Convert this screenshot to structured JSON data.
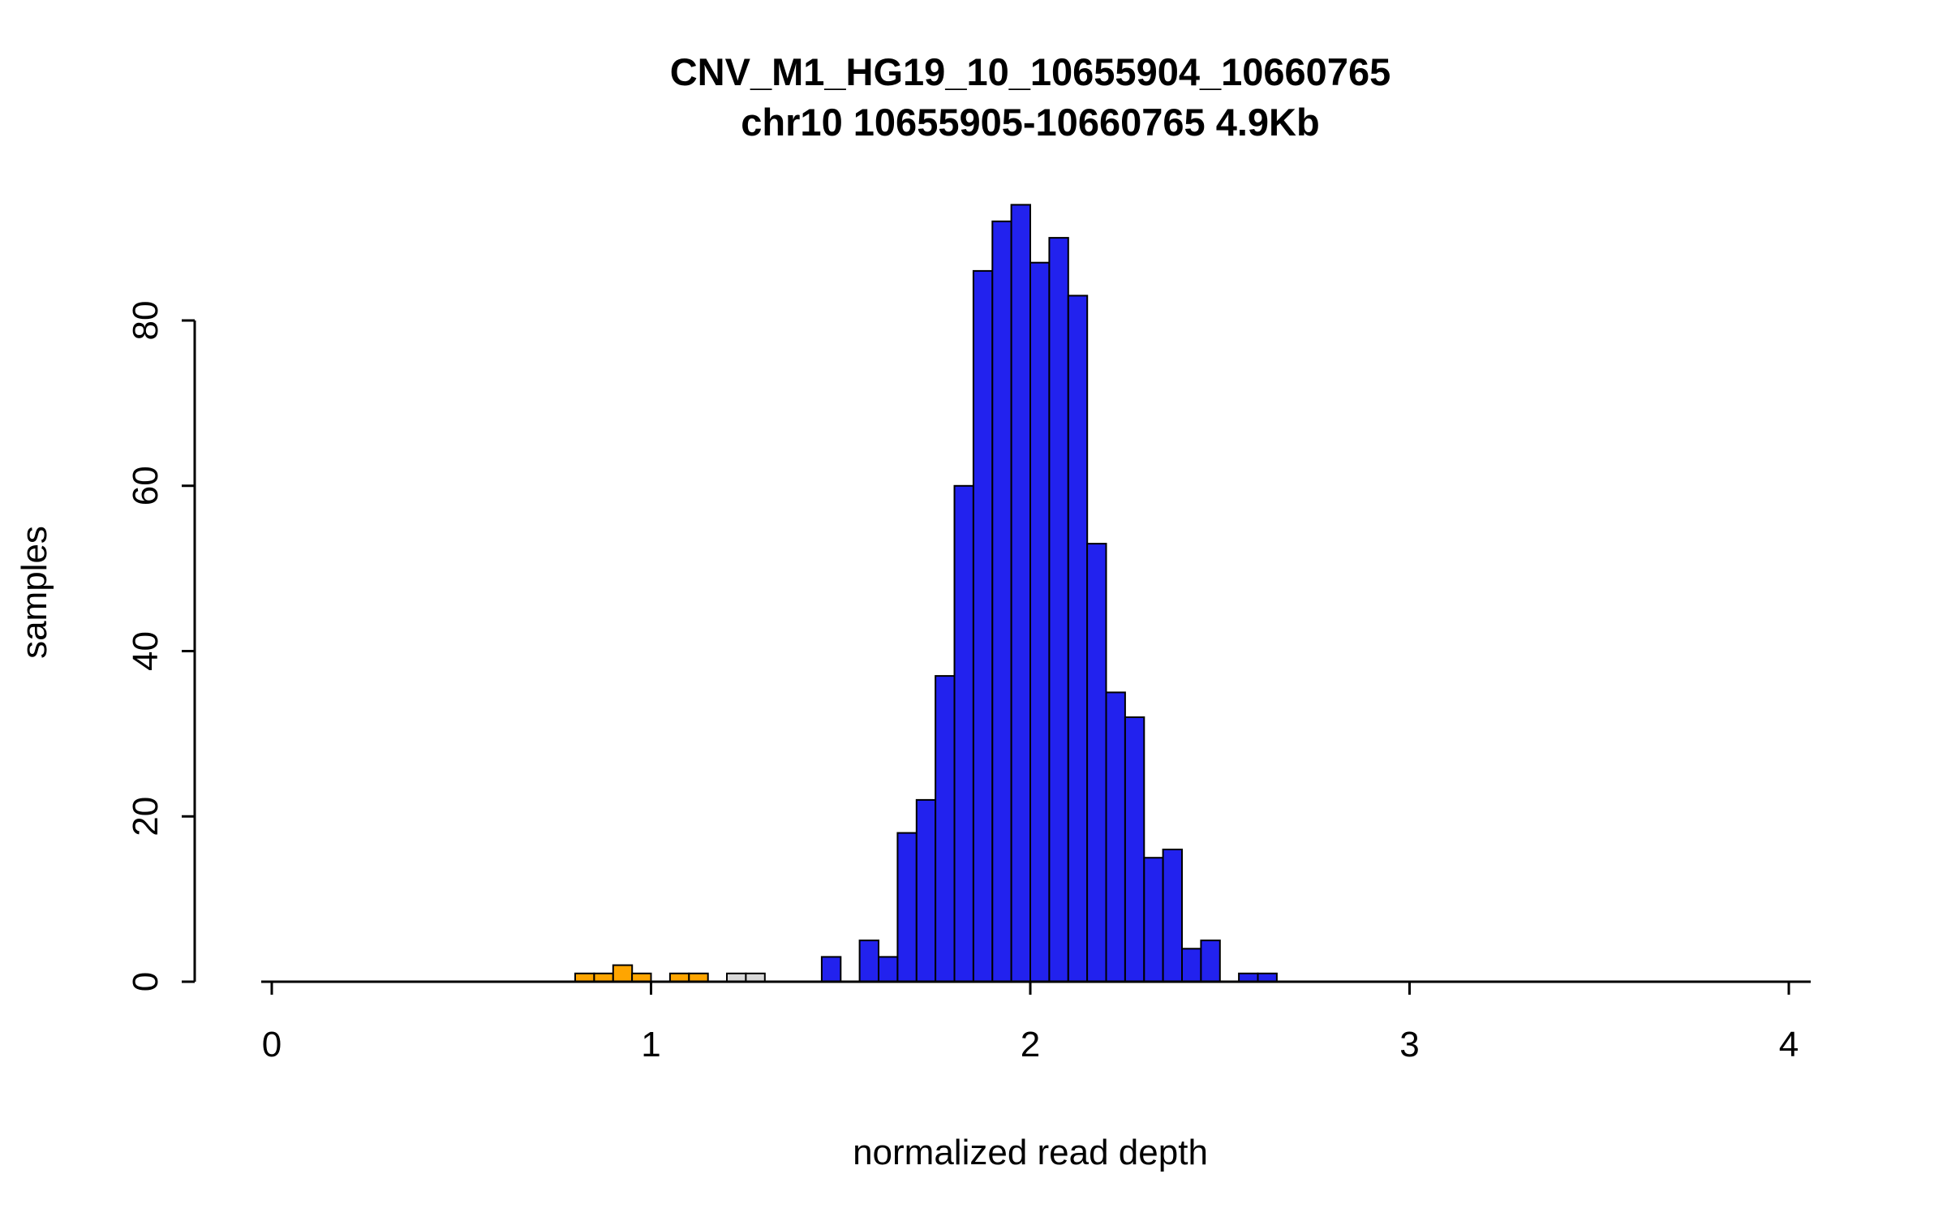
{
  "title_line1": "CNV_M1_HG19_10_10655904_10660765",
  "title_line2": "chr10 10655905-10660765 4.9Kb",
  "chart_data": {
    "type": "bar",
    "subtype": "histogram",
    "title": "CNV_M1_HG19_10_10655904_10660765",
    "subtitle": "chr10 10655905-10660765 4.9Kb",
    "xlabel": "normalized read depth",
    "ylabel": "samples",
    "xlim": [
      0,
      4
    ],
    "ylim": [
      0,
      94
    ],
    "x_ticks": [
      0,
      1,
      2,
      3,
      4
    ],
    "y_ticks": [
      0,
      20,
      40,
      60,
      80
    ],
    "grid": false,
    "legend": "none",
    "bin_width": 0.05,
    "bar_edge_color": "#000000",
    "colors": {
      "blue": "#2222EE",
      "orange": "#FFA500",
      "gray": "#D9D9D9"
    },
    "bins": [
      {
        "x": 0.8,
        "count": 1,
        "color": "orange"
      },
      {
        "x": 0.85,
        "count": 1,
        "color": "orange"
      },
      {
        "x": 0.9,
        "count": 2,
        "color": "orange"
      },
      {
        "x": 0.95,
        "count": 1,
        "color": "orange"
      },
      {
        "x": 1.05,
        "count": 1,
        "color": "orange"
      },
      {
        "x": 1.1,
        "count": 1,
        "color": "orange"
      },
      {
        "x": 1.2,
        "count": 1,
        "color": "gray"
      },
      {
        "x": 1.25,
        "count": 1,
        "color": "gray"
      },
      {
        "x": 1.45,
        "count": 3,
        "color": "blue"
      },
      {
        "x": 1.55,
        "count": 5,
        "color": "blue"
      },
      {
        "x": 1.6,
        "count": 3,
        "color": "blue"
      },
      {
        "x": 1.65,
        "count": 18,
        "color": "blue"
      },
      {
        "x": 1.7,
        "count": 22,
        "color": "blue"
      },
      {
        "x": 1.75,
        "count": 37,
        "color": "blue"
      },
      {
        "x": 1.8,
        "count": 60,
        "color": "blue"
      },
      {
        "x": 1.85,
        "count": 86,
        "color": "blue"
      },
      {
        "x": 1.9,
        "count": 92,
        "color": "blue"
      },
      {
        "x": 1.95,
        "count": 94,
        "color": "blue"
      },
      {
        "x": 2.0,
        "count": 87,
        "color": "blue"
      },
      {
        "x": 2.05,
        "count": 90,
        "color": "blue"
      },
      {
        "x": 2.1,
        "count": 83,
        "color": "blue"
      },
      {
        "x": 2.15,
        "count": 53,
        "color": "blue"
      },
      {
        "x": 2.2,
        "count": 35,
        "color": "blue"
      },
      {
        "x": 2.25,
        "count": 32,
        "color": "blue"
      },
      {
        "x": 2.3,
        "count": 15,
        "color": "blue"
      },
      {
        "x": 2.35,
        "count": 16,
        "color": "blue"
      },
      {
        "x": 2.4,
        "count": 4,
        "color": "blue"
      },
      {
        "x": 2.45,
        "count": 5,
        "color": "blue"
      },
      {
        "x": 2.55,
        "count": 1,
        "color": "blue"
      },
      {
        "x": 2.6,
        "count": 1,
        "color": "blue"
      }
    ]
  }
}
